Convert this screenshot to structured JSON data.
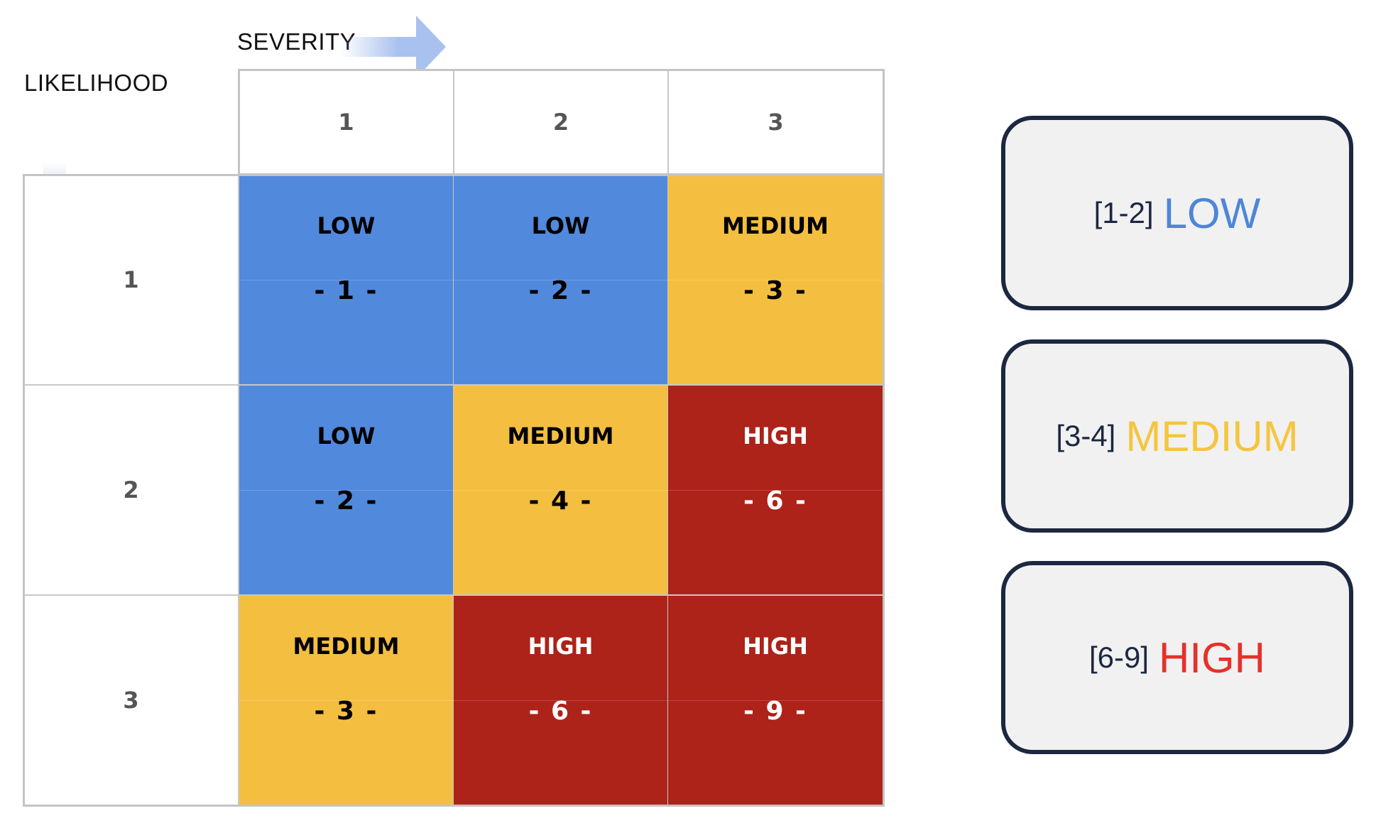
{
  "axes": {
    "severity_label": "SEVERITY",
    "likelihood_label": "LIKELIHOOD",
    "severity_values": [
      "1",
      "2",
      "3"
    ],
    "likelihood_values": [
      "1",
      "2",
      "3"
    ]
  },
  "colors": {
    "low": "#5189dc",
    "medium": "#f4bf40",
    "high": "#ad2219",
    "low_legend_text": "#4d86d8",
    "medium_legend_text": "#f5c53f",
    "high_legend_text": "#e5312a",
    "arrow": "#a9c1ee",
    "legend_border": "#1c2740"
  },
  "matrix": [
    [
      {
        "level": "LOW",
        "score": "- 1 -",
        "class": "low"
      },
      {
        "level": "LOW",
        "score": "- 2 -",
        "class": "low"
      },
      {
        "level": "MEDIUM",
        "score": "- 3 -",
        "class": "medium"
      }
    ],
    [
      {
        "level": "LOW",
        "score": "- 2 -",
        "class": "low"
      },
      {
        "level": "MEDIUM",
        "score": "- 4 -",
        "class": "medium"
      },
      {
        "level": "HIGH",
        "score": "- 6 -",
        "class": "high"
      }
    ],
    [
      {
        "level": "MEDIUM",
        "score": "- 3 -",
        "class": "medium"
      },
      {
        "level": "HIGH",
        "score": "- 6 -",
        "class": "high"
      },
      {
        "level": "HIGH",
        "score": "- 9 -",
        "class": "high"
      }
    ]
  ],
  "legend": [
    {
      "range": "[1-2]",
      "level": "LOW",
      "class": "low"
    },
    {
      "range": "[3-4]",
      "level": "MEDIUM",
      "class": "medium"
    },
    {
      "range": "[6-9]",
      "level": "HIGH",
      "class": "high"
    }
  ]
}
